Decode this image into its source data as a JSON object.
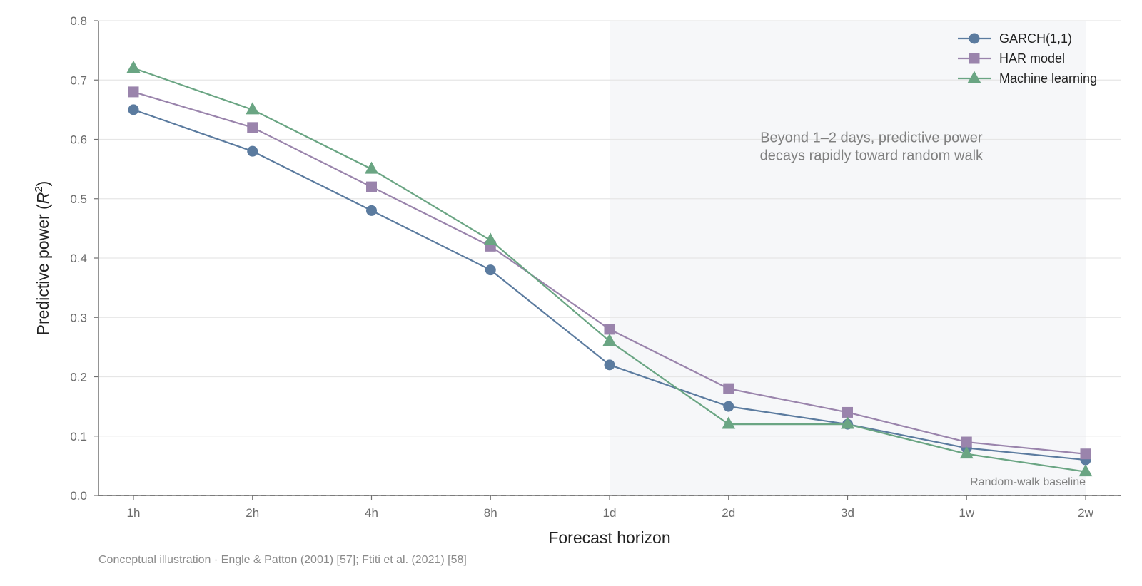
{
  "chart_data": {
    "type": "line",
    "xlabel": "Forecast horizon",
    "ylabel": "Predictive power (R²)",
    "ylabel_parts": {
      "main": "Predictive power (",
      "var": "R",
      "sup": "2",
      "close": ")"
    },
    "categories": [
      "1h",
      "2h",
      "4h",
      "8h",
      "1d",
      "2d",
      "3d",
      "1w",
      "2w"
    ],
    "ylim": [
      0.0,
      0.8
    ],
    "yticks": [
      "0.0",
      "0.1",
      "0.2",
      "0.3",
      "0.4",
      "0.5",
      "0.6",
      "0.7",
      "0.8"
    ],
    "grid": "horizontal",
    "legend_position": "top-right",
    "series": [
      {
        "name": "GARCH(1,1)",
        "marker": "circle",
        "color": "#5b7b9f",
        "values": [
          0.65,
          0.58,
          0.48,
          0.38,
          0.22,
          0.15,
          0.12,
          0.08,
          0.06
        ]
      },
      {
        "name": "HAR model",
        "marker": "square",
        "color": "#9a84ac",
        "values": [
          0.68,
          0.62,
          0.52,
          0.42,
          0.28,
          0.18,
          0.14,
          0.09,
          0.07
        ]
      },
      {
        "name": "Machine learning",
        "marker": "triangle",
        "color": "#6aa583",
        "values": [
          0.72,
          0.65,
          0.55,
          0.43,
          0.26,
          0.12,
          0.12,
          0.07,
          0.04
        ]
      }
    ],
    "shaded_region": {
      "from": "1d",
      "to": "2w",
      "color": "#f6f7f9"
    },
    "baseline": {
      "value": 0.0,
      "label": "Random-walk baseline",
      "color": "#808080"
    },
    "annotation": {
      "lines": [
        "Beyond 1–2 days, predictive power",
        "decays rapidly toward random walk"
      ],
      "anchor_category": "2d",
      "anchor_value": 0.595
    },
    "caption": "Conceptual illustration · Engle & Patton (2001) [57]; Ftiti et al. (2021) [58]"
  }
}
